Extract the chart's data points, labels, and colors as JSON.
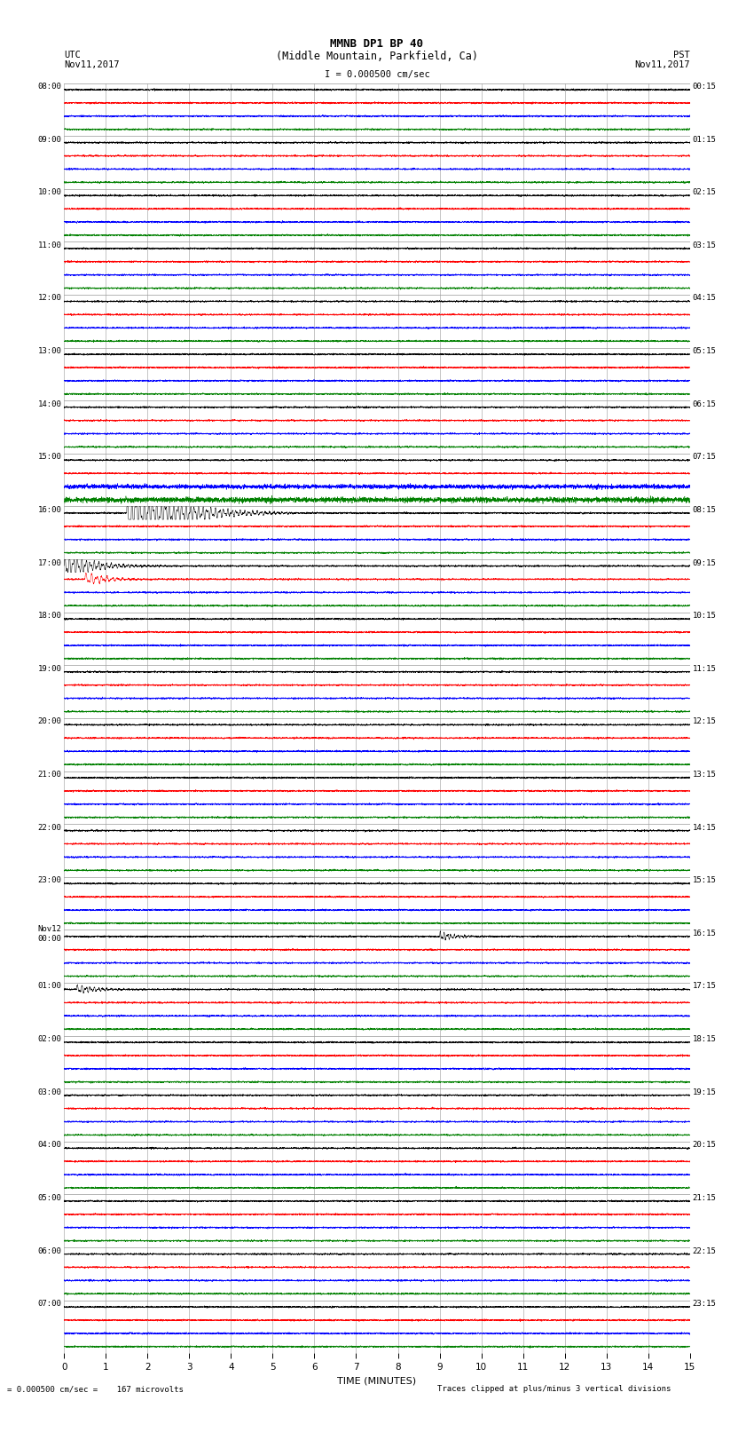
{
  "title1": "MMNB DP1 BP 40",
  "title2": "(Middle Mountain, Parkfield, Ca)",
  "scale_label": "I = 0.000500 cm/sec",
  "left_header": "UTC",
  "left_date": "Nov11,2017",
  "right_header": "PST",
  "right_date": "Nov11,2017",
  "bottom_label": "TIME (MINUTES)",
  "bottom_note": "= 0.000500 cm/sec =    167 microvolts",
  "bottom_note2": "Traces clipped at plus/minus 3 vertical divisions",
  "xlabel_ticks": [
    0,
    1,
    2,
    3,
    4,
    5,
    6,
    7,
    8,
    9,
    10,
    11,
    12,
    13,
    14,
    15
  ],
  "left_times_utc": [
    "08:00",
    "09:00",
    "10:00",
    "11:00",
    "12:00",
    "13:00",
    "14:00",
    "15:00",
    "16:00",
    "17:00",
    "18:00",
    "19:00",
    "20:00",
    "21:00",
    "22:00",
    "23:00",
    "Nov12\n00:00",
    "01:00",
    "02:00",
    "03:00",
    "04:00",
    "05:00",
    "06:00",
    "07:00"
  ],
  "right_times_pst": [
    "00:15",
    "01:15",
    "02:15",
    "03:15",
    "04:15",
    "05:15",
    "06:15",
    "07:15",
    "08:15",
    "09:15",
    "10:15",
    "11:15",
    "12:15",
    "13:15",
    "14:15",
    "15:15",
    "16:15",
    "17:15",
    "18:15",
    "19:15",
    "20:15",
    "21:15",
    "22:15",
    "23:15"
  ],
  "n_rows": 24,
  "traces_per_row": 4,
  "trace_colors": [
    "black",
    "red",
    "blue",
    "green"
  ],
  "bg_color": "white",
  "fig_width": 8.5,
  "fig_height": 16.13,
  "dpi": 100,
  "noise_amplitude": 0.06,
  "eq1_row": 8,
  "eq1_minute": 1.5,
  "eq1_amplitude_black": 1.0,
  "eq1_amplitude_red": 0.6,
  "eq1_red_row": 9,
  "eq2_row": 16,
  "eq2_minute": 9.0,
  "eq2_amplitude": 0.3,
  "eq3_row": 17,
  "eq3_minute": 0.3,
  "eq3_amplitude": 0.8,
  "eq3_red_minute": 0.5,
  "eq3_red_amplitude": 0.5,
  "special_green_row": 7,
  "special_green_amplitude": 0.18,
  "special_blue_row": 7,
  "special_blue_amplitude": 0.15
}
